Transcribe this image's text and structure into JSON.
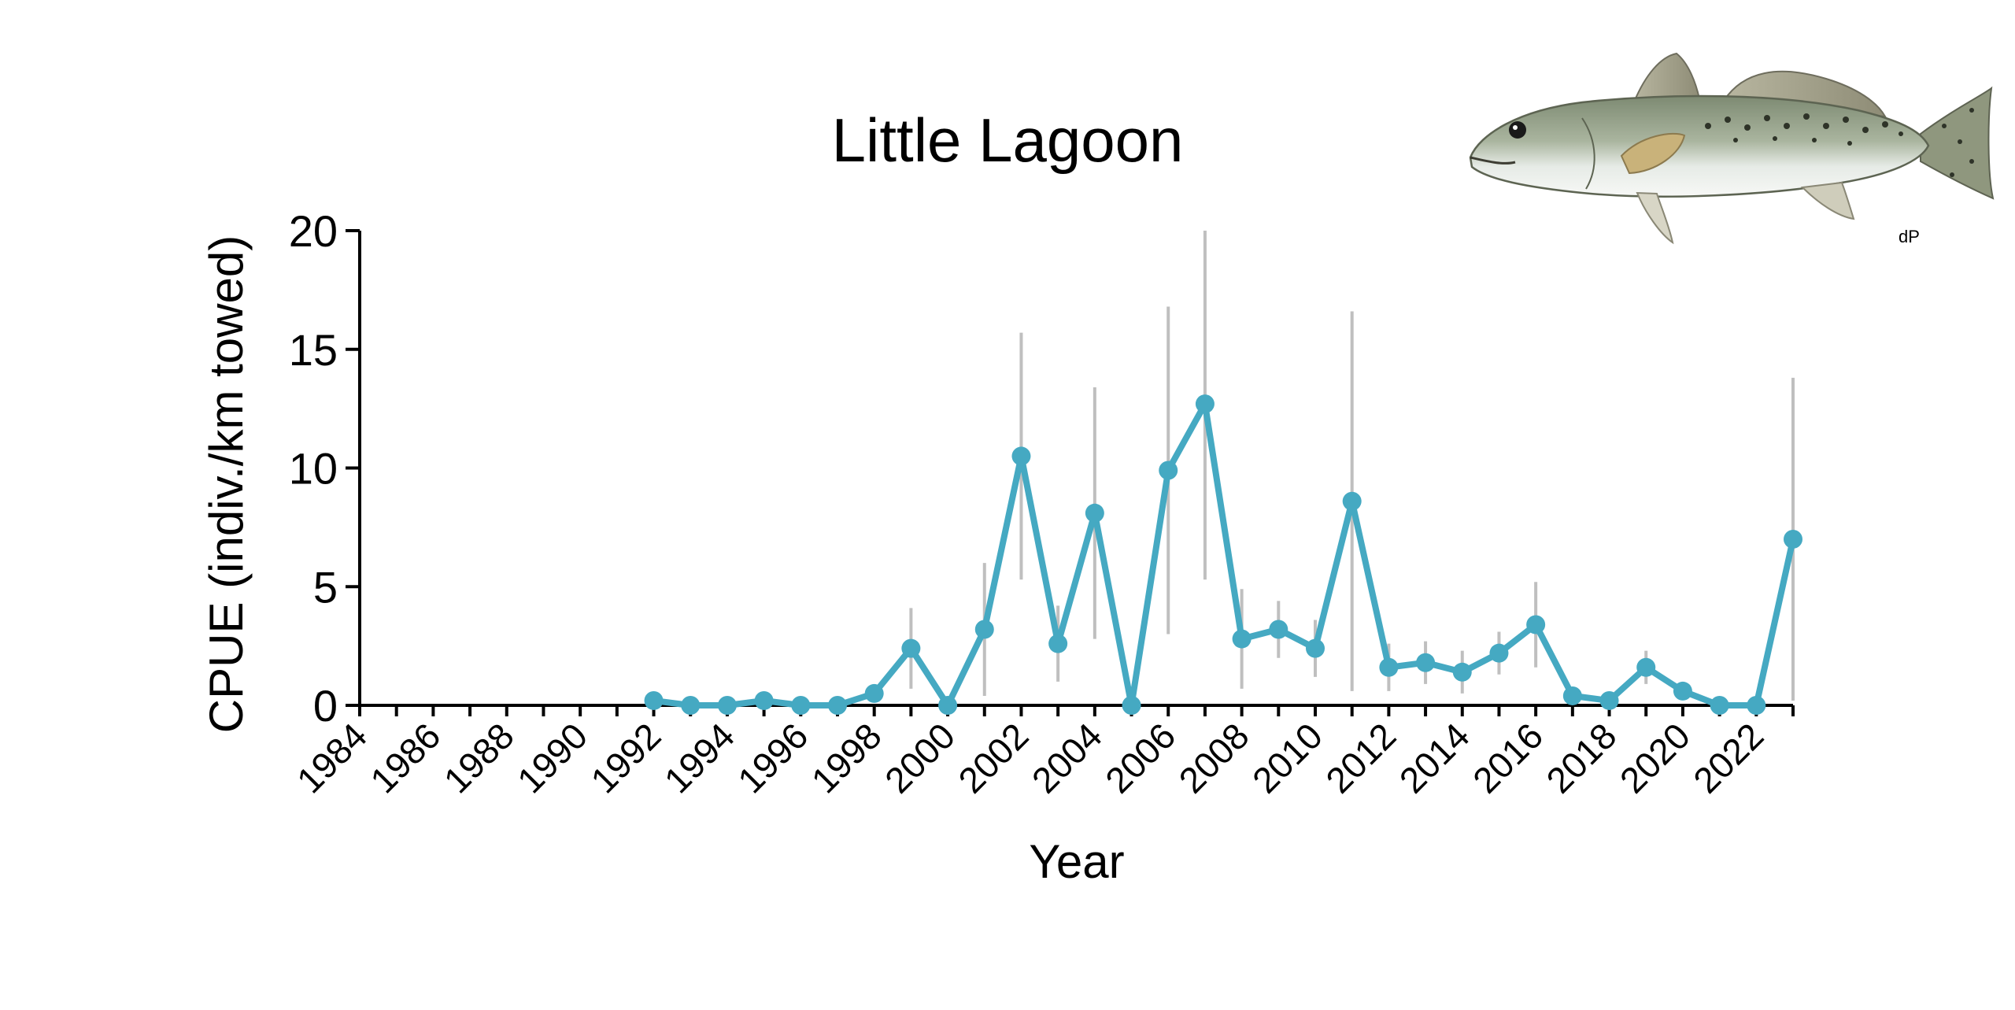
{
  "chart_data": {
    "type": "line",
    "title": "Little Lagoon",
    "xlabel": "Year",
    "ylabel": "CPUE (indiv./km towed)",
    "xlim": [
      1984,
      2023
    ],
    "ylim": [
      0,
      20
    ],
    "x_ticks": [
      1984,
      1986,
      1988,
      1990,
      1992,
      1994,
      1996,
      1998,
      2000,
      2002,
      2004,
      2006,
      2008,
      2010,
      2012,
      2014,
      2016,
      2018,
      2020,
      2022
    ],
    "y_ticks": [
      0,
      5,
      10,
      15,
      20
    ],
    "grid": false,
    "legend": "none",
    "series": [
      {
        "color": "#45a9c2",
        "error_bar_color": "#bfbfbf",
        "x": [
          1992,
          1993,
          1994,
          1995,
          1996,
          1997,
          1998,
          1999,
          2000,
          2001,
          2002,
          2003,
          2004,
          2005,
          2006,
          2007,
          2008,
          2009,
          2010,
          2011,
          2012,
          2013,
          2014,
          2015,
          2016,
          2017,
          2018,
          2019,
          2020,
          2021,
          2022,
          2023
        ],
        "y": [
          0.2,
          0.0,
          0.0,
          0.2,
          0.0,
          0.0,
          0.5,
          2.4,
          0.0,
          3.2,
          10.5,
          2.6,
          8.1,
          0.0,
          9.9,
          12.7,
          2.8,
          3.2,
          2.4,
          8.6,
          1.6,
          1.8,
          1.4,
          2.2,
          3.4,
          0.4,
          0.2,
          1.6,
          0.6,
          0.0,
          0.0,
          7.0
        ],
        "err": [
          0,
          0,
          0,
          0,
          0,
          0,
          0,
          1.7,
          0,
          2.8,
          5.2,
          1.6,
          5.3,
          0,
          6.9,
          7.4,
          2.1,
          1.2,
          1.2,
          8.0,
          1.0,
          0.9,
          0.9,
          0.9,
          1.8,
          0,
          0,
          0.7,
          0,
          0,
          0,
          6.8
        ]
      }
    ]
  },
  "fish_image": {
    "icon": "spotted-seatrout-illustration",
    "signature": "dP"
  }
}
